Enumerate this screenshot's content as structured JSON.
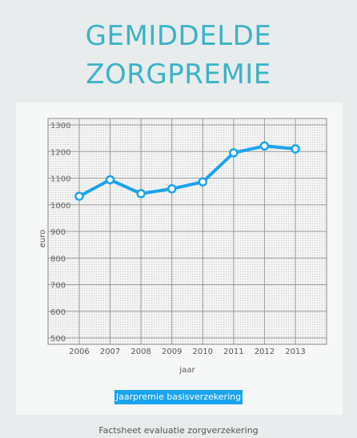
{
  "title_line1": "GEMIDDELDE",
  "title_line2": "ZORGPREMIE",
  "footer": "Factsheet evaluatie zorgverzekering",
  "chart_data": {
    "type": "line",
    "x": [
      "2006",
      "2007",
      "2008",
      "2009",
      "2010",
      "2011",
      "2012",
      "2013"
    ],
    "series": [
      {
        "name": "Jaarpremie basisverzekering",
        "values": [
          1032,
          1094,
          1042,
          1060,
          1086,
          1195,
          1221,
          1210
        ]
      }
    ],
    "y_ticks": [
      500,
      600,
      700,
      800,
      900,
      1000,
      1100,
      1200,
      1300
    ],
    "xlabel": "jaar",
    "ylabel": "euro",
    "ylim": [
      500,
      1300
    ],
    "grid": true,
    "legend": "bottom-center",
    "colors": {
      "line": "#1aa3ef",
      "marker_fill": "#ffffff",
      "title": "#3bb3c7",
      "legend_bg": "#1aa3ef"
    }
  }
}
